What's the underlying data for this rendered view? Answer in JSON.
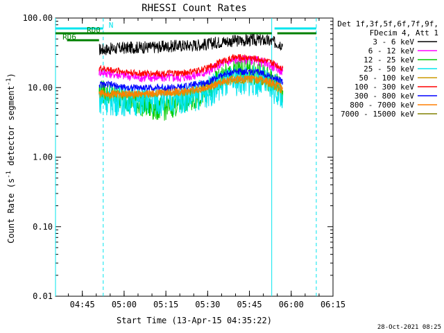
{
  "chart_data": {
    "type": "line",
    "title": "RHESSI Count Rates",
    "xlabel": "Start Time (13-Apr-15 04:35:22)",
    "ylabel_prefix": "Count Rate (s",
    "ylabel_sup": "-1",
    "ylabel_mid": " detector segment",
    "ylabel_sup2": "-1",
    "ylabel_suffix": ")",
    "y_scale": "log",
    "ylim": [
      0.01,
      100
    ],
    "xlim": [
      "04:35:22",
      "06:15:00"
    ],
    "x_ticks": [
      "04:45",
      "05:00",
      "05:15",
      "05:30",
      "05:45",
      "06:00",
      "06:15"
    ],
    "y_ticks": [
      "100.00",
      "10.00",
      "1.00",
      "0.10",
      "0.01"
    ],
    "y_tick_values": [
      100,
      10,
      1,
      0.1,
      0.01
    ],
    "grid": false,
    "legend_position": "top-right",
    "legend_header": [
      "Det 1f,3f,5f,6f,7f,9f,",
      "FDecim 4, Att 1"
    ],
    "series": [
      {
        "name": "3 - 6 keV",
        "color": "#000000",
        "x": [
          "04:51",
          "04:55",
          "05:00",
          "05:05",
          "05:10",
          "05:15",
          "05:20",
          "05:25",
          "05:30",
          "05:35",
          "05:40",
          "05:45",
          "05:50",
          "05:55",
          "05:57"
        ],
        "y": [
          35,
          36,
          37,
          38,
          38,
          39,
          40,
          41,
          42,
          46,
          47,
          48,
          48,
          44,
          42
        ]
      },
      {
        "name": "6 - 12 keV",
        "color": "#ff00ff",
        "x": [
          "04:51",
          "04:55",
          "05:00",
          "05:05",
          "05:10",
          "05:15",
          "05:20",
          "05:25",
          "05:30",
          "05:35",
          "05:40",
          "05:45",
          "05:50",
          "05:55",
          "05:57"
        ],
        "y": [
          17,
          16,
          15,
          14,
          14,
          14,
          14,
          15,
          17,
          22,
          25,
          25,
          23,
          19,
          17
        ]
      },
      {
        "name": "12 - 25 keV",
        "color": "#00cc00",
        "x": [
          "04:51",
          "04:55",
          "05:00",
          "05:05",
          "05:10",
          "05:15",
          "05:20",
          "05:25",
          "05:30",
          "05:35",
          "05:40",
          "05:45",
          "05:50",
          "05:55",
          "05:57"
        ],
        "y": [
          9,
          8,
          7,
          6,
          5,
          5,
          6,
          7,
          9,
          14,
          17,
          17,
          15,
          11,
          9
        ]
      },
      {
        "name": "25 - 50 keV",
        "color": "#00e5ee",
        "x": [
          "04:51",
          "04:55",
          "05:00",
          "05:05",
          "05:10",
          "05:15",
          "05:20",
          "05:25",
          "05:30",
          "05:35",
          "05:40",
          "05:45",
          "05:50",
          "05:55",
          "05:57"
        ],
        "y": [
          7,
          6.5,
          6.5,
          6.5,
          6.5,
          6.5,
          7,
          7.5,
          8.5,
          11,
          12.5,
          12.5,
          12,
          9,
          8
        ]
      },
      {
        "name": "50 - 100 keV",
        "color": "#cc9900",
        "x": [
          "04:51",
          "04:55",
          "05:00",
          "05:05",
          "05:10",
          "05:15",
          "05:20",
          "05:25",
          "05:30",
          "05:35",
          "05:40",
          "05:45",
          "05:50",
          "05:55",
          "05:57"
        ],
        "y": [
          8,
          8,
          8,
          8,
          8,
          8.5,
          8.5,
          9,
          10,
          12,
          13,
          13,
          12.5,
          10,
          9
        ]
      },
      {
        "name": "100 - 300 keV",
        "color": "#ff0000",
        "x": [
          "04:51",
          "04:55",
          "05:00",
          "05:05",
          "05:10",
          "05:15",
          "05:20",
          "05:25",
          "05:30",
          "05:35",
          "05:40",
          "05:45",
          "05:50",
          "05:55",
          "05:57"
        ],
        "y": [
          19,
          18,
          17,
          16,
          16,
          16,
          16,
          17,
          19,
          24,
          27,
          27,
          25,
          21,
          19
        ]
      },
      {
        "name": "300 - 800 keV",
        "color": "#0000ff",
        "x": [
          "04:51",
          "04:55",
          "05:00",
          "05:05",
          "05:10",
          "05:15",
          "05:20",
          "05:25",
          "05:30",
          "05:35",
          "05:40",
          "05:45",
          "05:50",
          "05:55",
          "05:57"
        ],
        "y": [
          11,
          11,
          10,
          10,
          10,
          10,
          10,
          11,
          12,
          15,
          17,
          17,
          16,
          13,
          12
        ]
      },
      {
        "name": "800 - 7000 keV",
        "color": "#ff7f00",
        "x": [
          "04:51",
          "04:55",
          "05:00",
          "05:05",
          "05:10",
          "05:15",
          "05:20",
          "05:25",
          "05:30",
          "05:35",
          "05:40",
          "05:45",
          "05:50",
          "05:55",
          "05:57"
        ],
        "y": [
          8.5,
          8.3,
          8.2,
          8.2,
          8.3,
          8.5,
          8.8,
          9.2,
          10,
          12,
          13.5,
          13.5,
          13,
          11,
          10
        ]
      },
      {
        "name": "7000 - 15000 keV",
        "color": "#808000",
        "x": [],
        "y": []
      }
    ],
    "attenuator_bars": [
      {
        "label": "N",
        "color": "#00e5ee",
        "segments": [
          [
            "04:35:22",
            "04:52:30"
          ],
          [
            "05:54",
            "06:09"
          ]
        ]
      },
      {
        "label": "RD0",
        "color": "#008000",
        "segments": [
          [
            "04:35:22",
            "05:37"
          ],
          [
            "05:37",
            "05:53"
          ],
          [
            "05:55",
            "06:09"
          ]
        ]
      },
      {
        "label": "RD6",
        "color": "#008000",
        "segments": [
          [
            "04:39:30",
            "04:51"
          ]
        ]
      }
    ],
    "vertical_markers": [
      {
        "time": "04:35:22",
        "style": "solid",
        "color": "#00e5ee"
      },
      {
        "time": "04:52:30",
        "style": "dashed",
        "color": "#00e5ee"
      },
      {
        "time": "05:53:00",
        "style": "solid",
        "color": "#00e5ee"
      },
      {
        "time": "06:09:00",
        "style": "dashed",
        "color": "#00e5ee"
      }
    ]
  },
  "footer": {
    "timestamp": "28-Oct-2021 08:25"
  }
}
